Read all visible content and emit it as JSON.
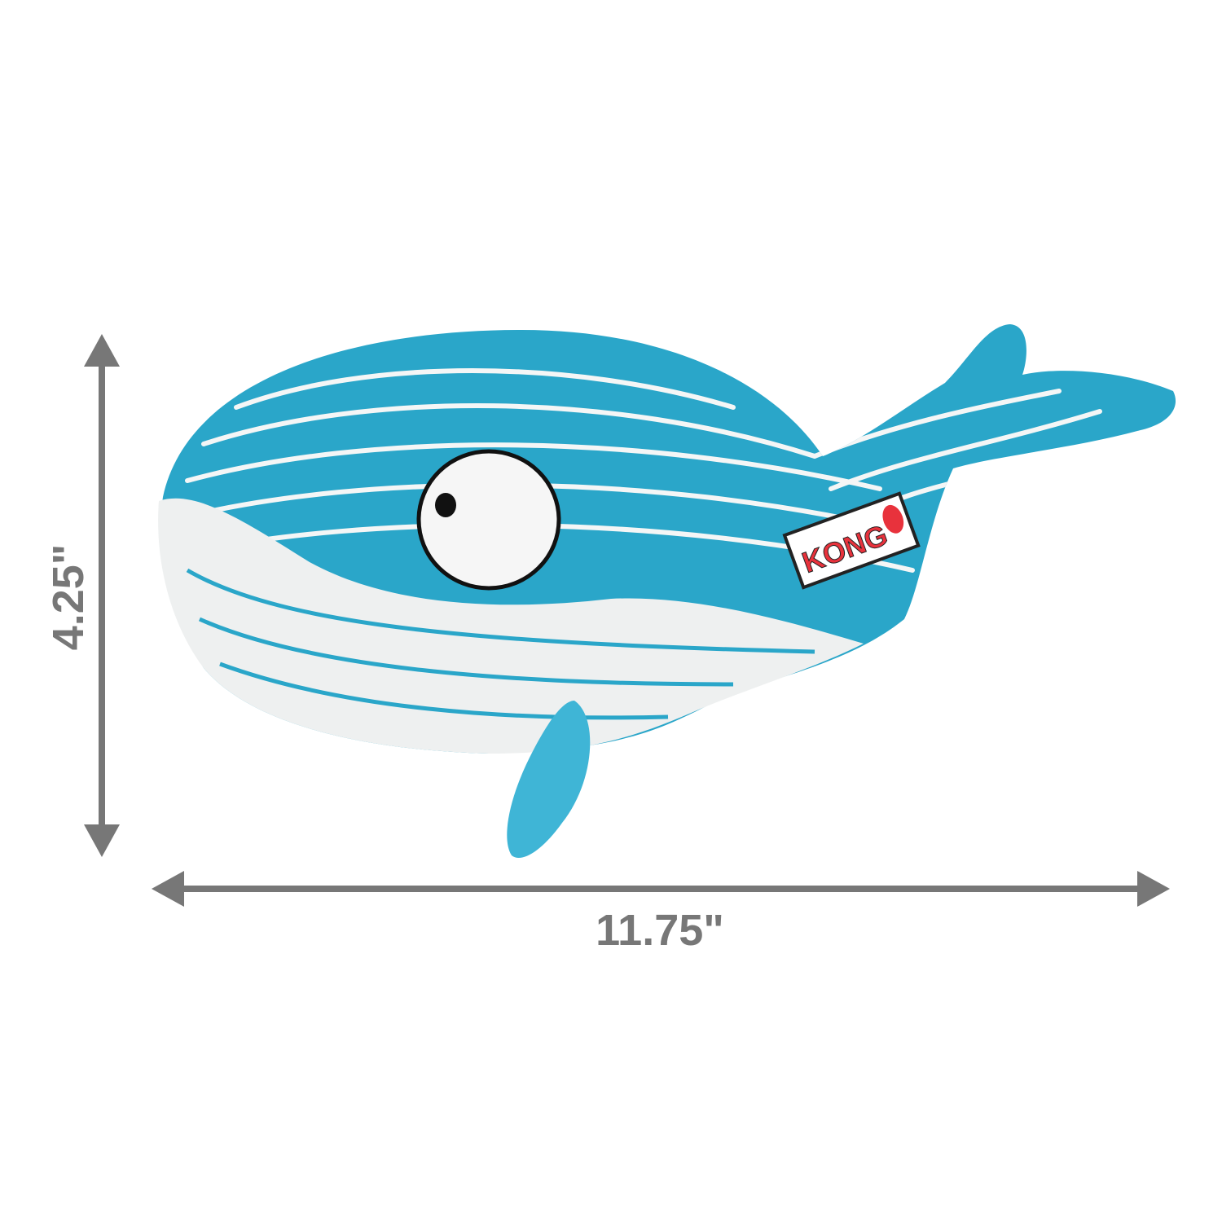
{
  "product": {
    "brand_logo_text": "KONG",
    "colors": {
      "body": "#2aa6c9",
      "belly": "#eef0f0",
      "stripe": "#f4f6f6",
      "logo_red": "#e8323c",
      "dimension": "#777777"
    }
  },
  "dimensions": {
    "height_label": "4.25\"",
    "width_label": "11.75\""
  }
}
